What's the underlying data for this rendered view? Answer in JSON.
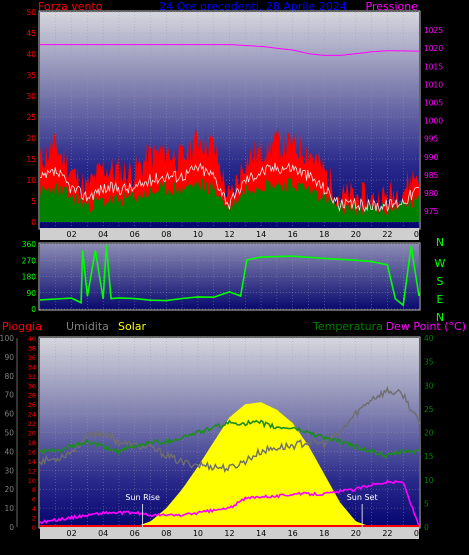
{
  "header": {
    "wind_label": "Forza vento",
    "period_title": "24 Ore precedenti, 28 Aprile 2024",
    "pressure_label": "Pressione"
  },
  "compass": [
    "N",
    "W",
    "S",
    "E",
    "N"
  ],
  "lower_labels": {
    "rain": "Pioggia",
    "humidity": "Umidita",
    "solar": "Solar",
    "temperature": "Temperatura",
    "dewpoint": "Dew Point (°C)"
  },
  "annotations": {
    "sun_rise": "Sun Rise",
    "sun_set": "Sun Set"
  },
  "colors": {
    "wind_gust": "#ff0000",
    "wind_avg": "#008000",
    "wind_run": "#1e8c1e",
    "pressure": "#ff00ff",
    "direction": "#00ff00",
    "rain": "#ff0000",
    "humidity": "#6e6e6e",
    "solar": "#ffff00",
    "temperature": "#1e8c1e",
    "dewpoint": "#ff00ff",
    "label_red": "#ff0000",
    "label_blue": "#0000ff",
    "label_gray": "#808080",
    "label_yellow": "#ffff00",
    "label_green": "#008000"
  },
  "chart_data": [
    {
      "type": "line",
      "id": "wind_pressure",
      "x_ticks": [
        "02",
        "04",
        "06",
        "08",
        "10",
        "12",
        "14",
        "16",
        "18",
        "20",
        "22",
        "00"
      ],
      "left_axis": {
        "range": [
          0,
          50
        ],
        "ticks": [
          "0",
          "5",
          "10",
          "15",
          "20",
          "25",
          "30",
          "35",
          "40",
          "45",
          "50"
        ]
      },
      "right_axis": {
        "range": [
          972,
          1030
        ],
        "ticks": [
          "975",
          "980",
          "985",
          "990",
          "995",
          "1000",
          "1005",
          "1010",
          "1015",
          "1020",
          "1025"
        ]
      },
      "series": [
        {
          "key": "gust",
          "x": [
            0,
            1,
            2,
            3,
            4,
            5,
            6,
            7,
            8,
            9,
            10,
            11,
            12,
            13,
            14,
            15,
            16,
            17,
            18,
            19,
            20,
            21,
            22,
            23,
            24
          ],
          "values": [
            15,
            18,
            12,
            8,
            13,
            12,
            12,
            16,
            17,
            15,
            20,
            18,
            5,
            15,
            17,
            19,
            18,
            17,
            12,
            6,
            6,
            5,
            6,
            8,
            12
          ]
        },
        {
          "key": "avg",
          "x": [
            0,
            1,
            2,
            3,
            4,
            5,
            6,
            7,
            8,
            9,
            10,
            11,
            12,
            13,
            14,
            15,
            16,
            17,
            18,
            19,
            20,
            21,
            22,
            23,
            24
          ],
          "values": [
            7,
            8,
            6,
            4,
            5,
            5,
            6,
            7,
            8,
            8,
            9,
            8,
            3,
            8,
            9,
            9,
            9,
            8,
            6,
            3,
            3,
            3,
            3,
            4,
            5
          ]
        },
        {
          "key": "mean",
          "x": [
            0,
            1,
            2,
            3,
            4,
            5,
            6,
            7,
            8,
            9,
            10,
            11,
            12,
            13,
            14,
            15,
            16,
            17,
            18,
            19,
            20,
            21,
            22,
            23,
            24
          ],
          "values": [
            10,
            12,
            8,
            6,
            8,
            8,
            8,
            10,
            11,
            11,
            13,
            11,
            4,
            10,
            12,
            13,
            13,
            11,
            8,
            4,
            4,
            4,
            4,
            5,
            8
          ]
        },
        {
          "key": "pressure",
          "x": [
            0,
            2,
            4,
            6,
            8,
            10,
            12,
            14,
            16,
            17,
            18,
            19,
            20,
            21,
            22,
            24
          ],
          "values": [
            1021,
            1021,
            1021,
            1021,
            1021,
            1021,
            1021,
            1020.5,
            1019.5,
            1018.5,
            1018,
            1018,
            1018.5,
            1019,
            1019.3,
            1019.2
          ]
        }
      ]
    },
    {
      "type": "scatter",
      "id": "wind_direction",
      "x_ticks": [
        "02",
        "04",
        "06",
        "08",
        "10",
        "12",
        "14",
        "16",
        "18",
        "20",
        "22",
        "00"
      ],
      "y_axis": {
        "range": [
          0,
          360
        ],
        "ticks": [
          "0",
          "90",
          "180",
          "270",
          "360"
        ]
      },
      "series": [
        {
          "key": "direction",
          "x": [
            0,
            1,
            2,
            2.6,
            2.7,
            3,
            3.5,
            4,
            4.2,
            4.5,
            5,
            6,
            7,
            8,
            9,
            10,
            11,
            12,
            12.7,
            13.1,
            14,
            16,
            18,
            20,
            21,
            22,
            22.5,
            23,
            23.5,
            24
          ],
          "values": [
            55,
            60,
            65,
            40,
            330,
            70,
            320,
            60,
            350,
            60,
            60,
            55,
            50,
            50,
            60,
            65,
            70,
            90,
            70,
            270,
            290,
            290,
            280,
            270,
            265,
            240,
            60,
            20,
            350,
            70
          ]
        }
      ]
    },
    {
      "type": "line",
      "id": "rain_humidity_solar_temp",
      "x_ticks": [
        "02",
        "04",
        "06",
        "08",
        "10",
        "12",
        "14",
        "16",
        "18",
        "20",
        "22",
        "00"
      ],
      "axes": {
        "humidity": {
          "range": [
            0,
            100
          ],
          "ticks": [
            "0",
            "10",
            "20",
            "30",
            "40",
            "50",
            "60",
            "70",
            "80",
            "90",
            "100"
          ]
        },
        "rain": {
          "range": [
            0,
            40
          ],
          "ticks": [
            "0",
            "2",
            "4",
            "6",
            "8",
            "10",
            "12",
            "14",
            "16",
            "18",
            "20",
            "22",
            "24",
            "26",
            "28",
            "30",
            "32",
            "34",
            "36",
            "38",
            "40"
          ]
        },
        "temperature": {
          "range": [
            0,
            40
          ],
          "ticks": [
            "0",
            "5",
            "10",
            "15",
            "20",
            "25",
            "30",
            "35",
            "40"
          ]
        }
      },
      "series": [
        {
          "key": "humidity",
          "x": [
            0,
            1,
            2,
            3,
            4,
            5,
            6,
            7,
            8,
            9,
            10,
            11,
            12,
            13,
            14,
            15,
            16,
            17,
            18,
            19,
            20,
            21,
            22,
            23,
            24
          ],
          "values": [
            35,
            36,
            40,
            48,
            50,
            45,
            43,
            42,
            38,
            34,
            33,
            32,
            31,
            35,
            40,
            42,
            43,
            45,
            44,
            50,
            60,
            68,
            72,
            70,
            55
          ]
        },
        {
          "key": "solar",
          "x": [
            6,
            7,
            8,
            9,
            10,
            11,
            12,
            13,
            14,
            15,
            16,
            17,
            18,
            19,
            20,
            21
          ],
          "values": [
            0,
            3,
            10,
            20,
            32,
            45,
            58,
            65,
            66,
            62,
            55,
            43,
            28,
            13,
            3,
            0
          ]
        },
        {
          "key": "temperature",
          "x": [
            0,
            1,
            2,
            3,
            4,
            5,
            6,
            7,
            8,
            9,
            10,
            11,
            12,
            13,
            14,
            15,
            16,
            17,
            18,
            19,
            20,
            21,
            22,
            23,
            24
          ],
          "values": [
            16,
            16,
            17,
            18,
            17,
            16,
            17,
            18,
            18,
            19,
            20,
            21,
            22,
            22,
            22,
            21,
            21,
            20,
            19,
            18,
            17,
            16,
            15,
            16,
            16
          ]
        },
        {
          "key": "dewpoint",
          "x": [
            0,
            1,
            2,
            3,
            4,
            5,
            6,
            7,
            8,
            9,
            10,
            11,
            12,
            13,
            14,
            15,
            16,
            17,
            18,
            19,
            20,
            21,
            22,
            23,
            24
          ],
          "values": [
            1,
            1.5,
            2,
            2.5,
            3,
            3,
            3,
            2.5,
            2.5,
            2.5,
            3,
            3.5,
            4,
            6,
            6.5,
            6.5,
            7,
            7,
            7,
            7.5,
            8,
            9,
            9.5,
            9.5,
            0
          ]
        },
        {
          "key": "rain",
          "x": [
            0,
            24
          ],
          "values": [
            0,
            0
          ]
        }
      ],
      "sun_rise_x": 6.5,
      "sun_set_x": 20.4
    }
  ]
}
